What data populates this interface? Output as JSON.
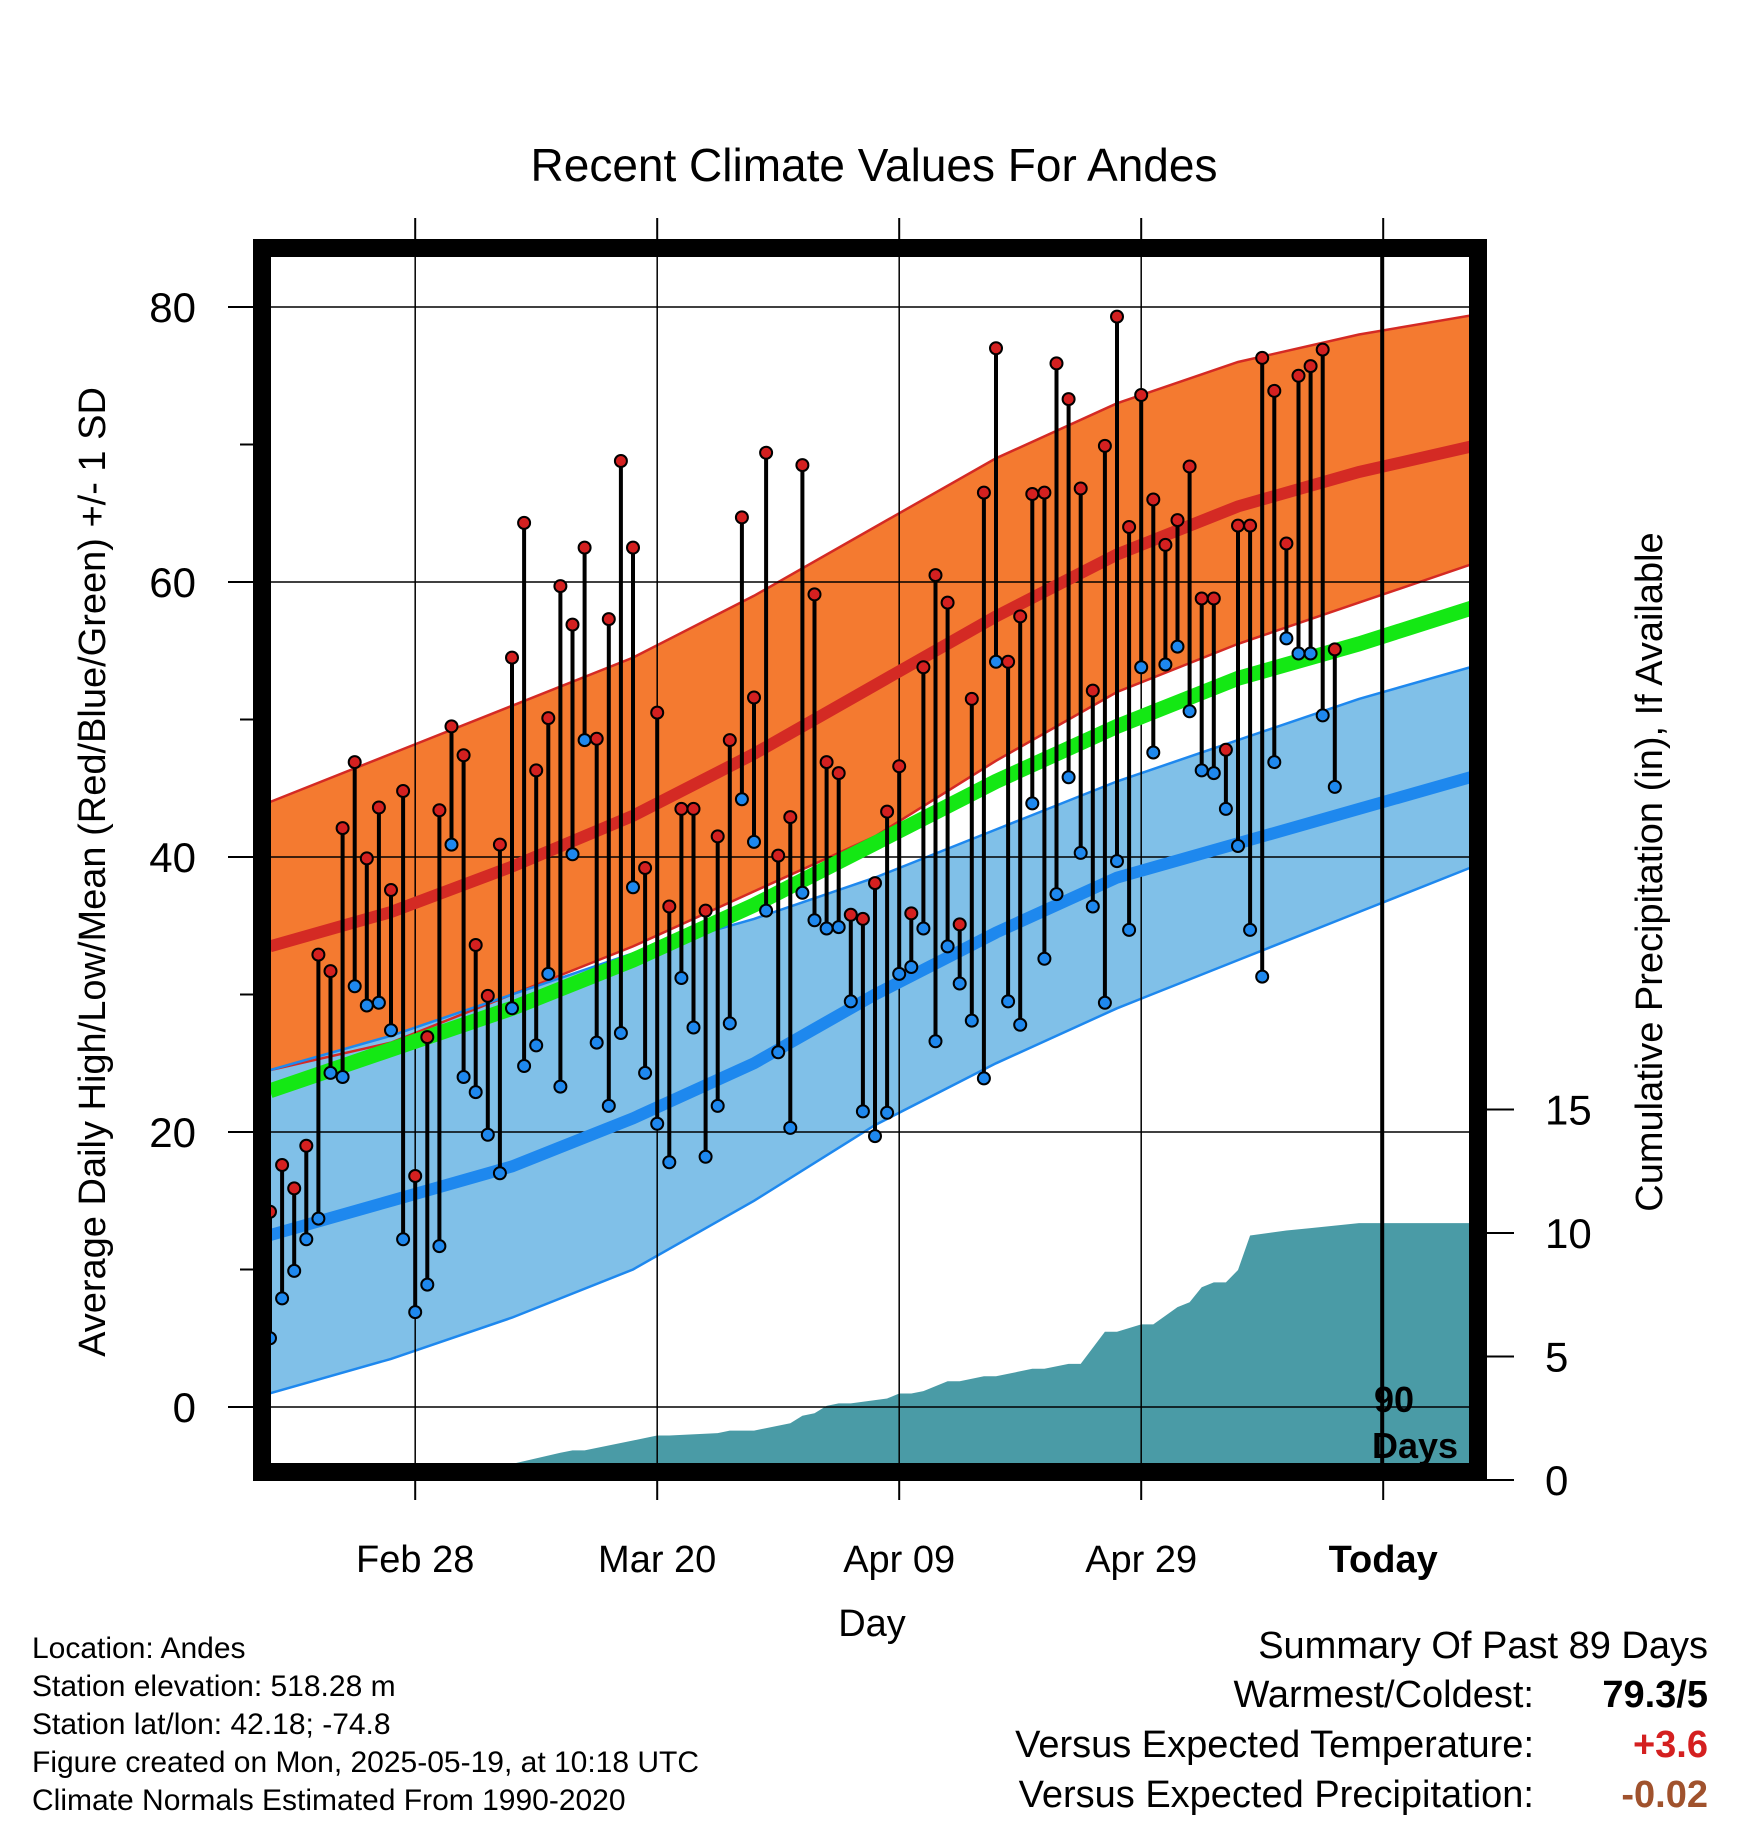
{
  "chart_data": {
    "type": "line",
    "title": "Recent Climate Values For Andes",
    "xlabel": "Day",
    "ylabel": "Average Daily High/Low/Mean (Red/Blue/Green) +/- 1 SD",
    "ylabel_right": "Cumulative Precipitation (in), If Available",
    "x_tick_labels": [
      "Feb 28",
      "Mar 20",
      "Apr 09",
      "Apr 29",
      "Today"
    ],
    "x_tick_days": [
      12,
      32,
      52,
      72,
      92
    ],
    "y_ticks": [
      "0",
      "20",
      "40",
      "60",
      "80"
    ],
    "y2_ticks": [
      "0",
      "5",
      "10",
      "15"
    ],
    "ylim": [
      -5,
      85
    ],
    "y2lim": [
      0,
      15
    ],
    "today_marker": "90",
    "today_marker_unit": "Days",
    "colors": {
      "high_band": "#f47a30",
      "high_mean": "#d42a24",
      "low_band": "#80c0e8",
      "low_mean": "#1e88ee",
      "mean_normal": "#14e814",
      "precip": "#4a9ba6",
      "high_dot": "#d42020",
      "low_dot": "#1e88ee"
    },
    "normals": {
      "days": [
        0,
        10,
        20,
        30,
        40,
        50,
        60,
        70,
        80,
        90,
        100
      ],
      "high_mean": [
        33.5,
        36,
        39.3,
        43,
        47.5,
        52.5,
        57.5,
        62,
        65.5,
        68,
        70
      ],
      "high_plus_sd": [
        44,
        47.5,
        51,
        54.5,
        59,
        64,
        69,
        73,
        76,
        78,
        79.5
      ],
      "high_minus_sd": [
        24.5,
        26.5,
        30,
        33.5,
        37.5,
        41.5,
        47,
        52,
        55.5,
        58.5,
        61.5
      ],
      "low_mean": [
        12.5,
        15,
        17.5,
        21,
        25,
        30,
        34.5,
        38.5,
        41,
        43.5,
        46
      ],
      "low_plus_sd": [
        24.5,
        27,
        30,
        33,
        35.5,
        38.5,
        42,
        45.5,
        48.5,
        51.5,
        54
      ],
      "low_minus_sd": [
        1,
        3.5,
        6.5,
        10,
        15,
        20.5,
        25,
        29,
        32.5,
        36,
        39.5
      ],
      "mean": [
        23,
        26,
        29,
        32.5,
        36.5,
        41,
        45.5,
        49.5,
        53,
        55.5,
        58.3
      ]
    },
    "series": [
      {
        "name": "High",
        "values": [
          14.2,
          17.6,
          15.9,
          19.0,
          32.9,
          31.7,
          42.1,
          46.9,
          39.9,
          43.6,
          37.6,
          44.8,
          16.8,
          26.9,
          43.4,
          49.5,
          47.4,
          33.6,
          29.9,
          40.9,
          54.5,
          64.3,
          46.3,
          50.1,
          59.7,
          56.9,
          62.5,
          48.6,
          57.3,
          68.8,
          62.5,
          39.2,
          50.5,
          36.4,
          43.5,
          43.5,
          36.1,
          41.5,
          48.5,
          64.7,
          51.6,
          69.4,
          40.1,
          42.9,
          68.5,
          59.1,
          46.9,
          46.1,
          35.8,
          35.5,
          38.1,
          43.3,
          46.6,
          35.9,
          53.8,
          60.5,
          58.5,
          35.1,
          51.5,
          66.5,
          77.0,
          54.2,
          57.5,
          66.4,
          66.5,
          75.9,
          73.3,
          66.8,
          52.1,
          69.9,
          79.3,
          64.0,
          73.6,
          66.0,
          62.7,
          64.5,
          68.4,
          58.8,
          58.8,
          47.8,
          64.1,
          64.1,
          76.3,
          73.9,
          62.8,
          75.0,
          75.7,
          76.9,
          55.1
        ],
        "color": "#d42020"
      },
      {
        "name": "Low",
        "values": [
          5.0,
          7.9,
          9.9,
          12.2,
          13.7,
          24.3,
          24.0,
          30.6,
          29.2,
          29.4,
          27.4,
          12.2,
          6.9,
          8.9,
          11.7,
          40.9,
          24.0,
          22.9,
          19.8,
          17.0,
          29.0,
          24.8,
          26.3,
          31.5,
          23.3,
          40.2,
          48.5,
          26.5,
          21.9,
          27.2,
          37.8,
          24.3,
          20.6,
          17.8,
          31.2,
          27.6,
          18.2,
          21.9,
          27.9,
          44.2,
          41.1,
          36.1,
          25.8,
          20.3,
          37.4,
          35.4,
          34.8,
          34.9,
          29.5,
          21.5,
          19.7,
          21.4,
          31.5,
          32.0,
          34.8,
          26.6,
          33.5,
          30.8,
          28.1,
          23.9,
          54.2,
          29.5,
          27.8,
          43.9,
          32.6,
          37.3,
          45.8,
          40.3,
          36.4,
          29.4,
          39.7,
          34.7,
          53.8,
          47.6,
          54.0,
          55.3,
          50.6,
          46.3,
          46.1,
          43.5,
          40.8,
          34.7,
          31.3,
          46.9,
          55.9,
          54.8,
          54.8,
          50.3,
          45.1
        ],
        "color": "#1e88ee"
      }
    ],
    "precipitation": {
      "days": [
        0,
        9,
        10,
        14,
        15,
        16,
        24,
        25,
        26,
        30,
        31,
        32,
        33,
        37,
        38,
        39,
        40,
        43,
        44,
        45,
        46,
        47,
        48,
        51,
        52,
        53,
        54,
        56,
        57,
        59,
        60,
        63,
        64,
        66,
        67,
        69,
        70,
        72,
        73,
        75,
        76,
        77,
        78,
        79,
        80,
        81,
        84,
        86,
        88,
        90,
        100
      ],
      "values": [
        0,
        0,
        0.1,
        0.2,
        0.2,
        0.2,
        1.1,
        1.2,
        1.2,
        1.6,
        1.7,
        1.8,
        1.8,
        1.9,
        2.0,
        2.0,
        2.0,
        2.3,
        2.6,
        2.7,
        3.0,
        3.1,
        3.1,
        3.3,
        3.5,
        3.5,
        3.6,
        4.0,
        4.0,
        4.2,
        4.2,
        4.5,
        4.5,
        4.7,
        4.7,
        6.0,
        6.0,
        6.3,
        6.3,
        7.0,
        7.2,
        7.8,
        8.0,
        8.0,
        8.5,
        9.9,
        10.1,
        10.2,
        10.3,
        10.4,
        10.4
      ]
    }
  },
  "footer": {
    "location": "Location: Andes",
    "elevation": "Station elevation: 518.28 m",
    "latlon": "Station lat/lon: 42.18; -74.8",
    "created": "Figure created on Mon, 2025-05-19, at 10:18 UTC",
    "normals": "Climate Normals Estimated From 1990-2020"
  },
  "summary": {
    "title": "Summary Of Past 89 Days",
    "warmest_coldest_label": "Warmest/Coldest:",
    "warmest_coldest_value": "79.3/5",
    "temp_label": "Versus Expected Temperature:",
    "temp_value": "+3.6",
    "temp_color": "#d42020",
    "precip_label": "Versus Expected Precipitation:",
    "precip_value": "-0.02",
    "precip_color": "#a0522d"
  }
}
